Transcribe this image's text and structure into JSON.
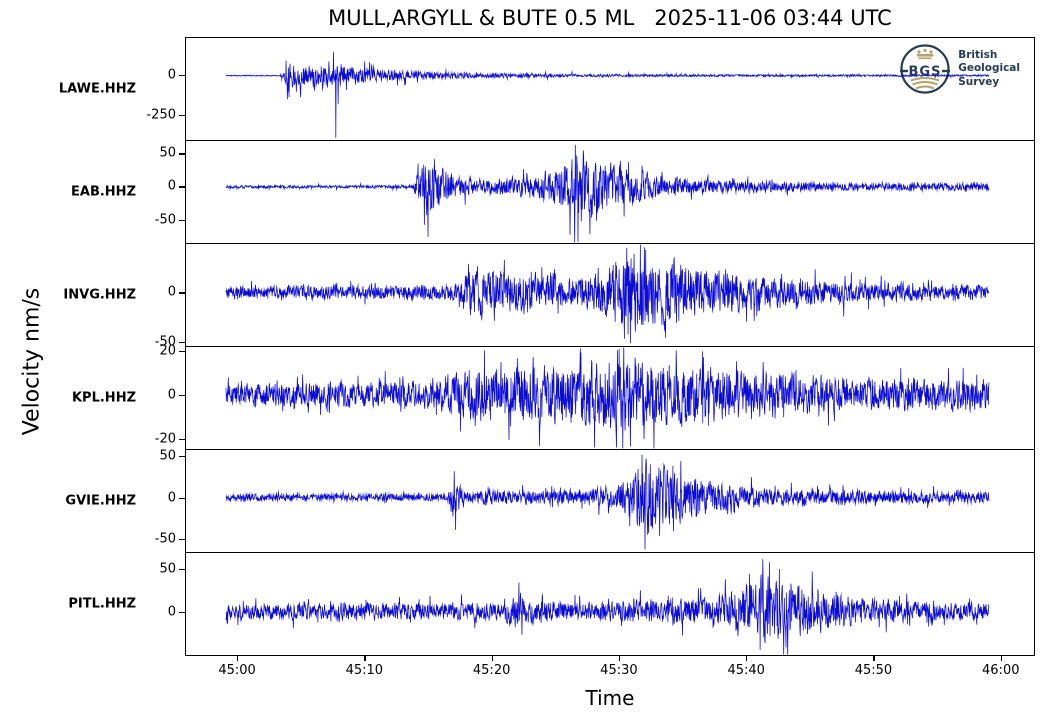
{
  "title": "MULL,ARGYLL & BUTE 0.5 ML   2025-11-06 03:44 UTC",
  "xlabel": "Time",
  "ylabel": "Velocity nm/s",
  "logo": {
    "abbr": "BGS",
    "lines": [
      "British",
      "Geological",
      "Survey"
    ],
    "navy": "#253c52",
    "gold": "#b2a26b"
  },
  "trace_color": "#0b0bd8",
  "chart_data": {
    "type": "line",
    "title": "MULL,ARGYLL & BUTE 0.5 ML   2025-11-06 03:44 UTC",
    "xlabel": "Time",
    "ylabel": "Velocity nm/s",
    "x_axis": {
      "tick_labels": [
        "45:00",
        "45:10",
        "45:20",
        "45:30",
        "45:40",
        "45:50",
        "46:00"
      ],
      "tick_values": [
        0,
        10,
        20,
        30,
        40,
        50,
        60
      ],
      "range": [
        -4.09,
        62.69
      ],
      "trace_range": [
        -0.94,
        59.15
      ],
      "units": "mm:ss after 03:00 UTC"
    },
    "series": [
      {
        "name": "LAWE.HHZ",
        "seed": 11,
        "ylim": [
          -406,
          237
        ],
        "y_ticks": [
          {
            "label": "0",
            "value": 0
          },
          {
            "label": "-250",
            "value": -250
          }
        ],
        "envelope": [
          [
            0,
            4
          ],
          [
            0.07,
            4
          ],
          [
            0.076,
            30
          ],
          [
            0.082,
            130
          ],
          [
            0.09,
            70
          ],
          [
            0.1,
            95
          ],
          [
            0.11,
            65
          ],
          [
            0.12,
            70
          ],
          [
            0.13,
            120
          ],
          [
            0.14,
            60
          ],
          [
            0.15,
            80
          ],
          [
            0.16,
            65
          ],
          [
            0.18,
            55
          ],
          [
            0.21,
            40
          ],
          [
            0.26,
            25
          ],
          [
            0.33,
            16
          ],
          [
            0.45,
            11
          ],
          [
            0.6,
            8
          ],
          [
            0.8,
            7
          ],
          [
            1,
            6
          ]
        ],
        "spikes": [
          [
            0.1437,
            -392
          ],
          [
            0.141,
            150
          ],
          [
            0.147,
            -180
          ],
          [
            0.0785,
            95
          ]
        ]
      },
      {
        "name": "EAB.HHZ",
        "seed": 22,
        "ylim": [
          -86,
          70
        ],
        "y_ticks": [
          {
            "label": "50",
            "value": 50
          },
          {
            "label": "0",
            "value": 0
          },
          {
            "label": "-50",
            "value": -50
          }
        ],
        "envelope": [
          [
            0,
            2.5
          ],
          [
            0.245,
            2.5
          ],
          [
            0.252,
            40
          ],
          [
            0.262,
            50
          ],
          [
            0.275,
            40
          ],
          [
            0.29,
            25
          ],
          [
            0.31,
            15
          ],
          [
            0.35,
            13
          ],
          [
            0.4,
            18
          ],
          [
            0.43,
            28
          ],
          [
            0.45,
            45
          ],
          [
            0.462,
            70
          ],
          [
            0.475,
            55
          ],
          [
            0.5,
            40
          ],
          [
            0.53,
            28
          ],
          [
            0.57,
            18
          ],
          [
            0.63,
            12
          ],
          [
            0.72,
            8
          ],
          [
            0.82,
            6
          ],
          [
            0.92,
            5
          ],
          [
            0.96,
            7
          ],
          [
            1,
            5
          ]
        ],
        "spikes": [
          [
            0.4615,
            -84
          ],
          [
            0.458,
            64
          ],
          [
            0.26,
            -58
          ]
        ]
      },
      {
        "name": "INVG.HHZ",
        "seed": 33,
        "ylim": [
          -55,
          50
        ],
        "y_ticks": [
          {
            "label": "0",
            "value": 0
          },
          {
            "label": "-50",
            "value": -50
          }
        ],
        "envelope": [
          [
            0,
            7
          ],
          [
            0.2,
            8
          ],
          [
            0.3,
            9
          ],
          [
            0.327,
            30
          ],
          [
            0.34,
            24
          ],
          [
            0.36,
            28
          ],
          [
            0.39,
            20
          ],
          [
            0.42,
            22
          ],
          [
            0.45,
            16
          ],
          [
            0.48,
            20
          ],
          [
            0.5,
            30
          ],
          [
            0.52,
            44
          ],
          [
            0.545,
            48
          ],
          [
            0.565,
            36
          ],
          [
            0.585,
            42
          ],
          [
            0.61,
            30
          ],
          [
            0.64,
            26
          ],
          [
            0.68,
            20
          ],
          [
            0.73,
            16
          ],
          [
            0.79,
            13
          ],
          [
            0.86,
            11
          ],
          [
            0.93,
            9
          ],
          [
            1,
            9
          ]
        ],
        "spikes": [
          [
            0.53,
            -52
          ],
          [
            0.525,
            46
          ],
          [
            0.55,
            44
          ]
        ]
      },
      {
        "name": "KPL.HHZ",
        "seed": 44,
        "ylim": [
          -25,
          22
        ],
        "y_ticks": [
          {
            "label": "20",
            "value": 20
          },
          {
            "label": "0",
            "value": 0
          },
          {
            "label": "-20",
            "value": -20
          }
        ],
        "envelope": [
          [
            0,
            6
          ],
          [
            0.27,
            7
          ],
          [
            0.3,
            12
          ],
          [
            0.34,
            15
          ],
          [
            0.38,
            13
          ],
          [
            0.42,
            15
          ],
          [
            0.46,
            16
          ],
          [
            0.5,
            18
          ],
          [
            0.52,
            20
          ],
          [
            0.55,
            16
          ],
          [
            0.59,
            17
          ],
          [
            0.63,
            14
          ],
          [
            0.68,
            12
          ],
          [
            0.75,
            10
          ],
          [
            0.85,
            8
          ],
          [
            1,
            8
          ]
        ],
        "spikes": [
          [
            0.52,
            -26
          ],
          [
            0.515,
            21
          ]
        ]
      },
      {
        "name": "GVIE.HHZ",
        "seed": 55,
        "ylim": [
          -67,
          58
        ],
        "y_ticks": [
          {
            "label": "50",
            "value": 50
          },
          {
            "label": "0",
            "value": 0
          },
          {
            "label": "-50",
            "value": -50
          }
        ],
        "envelope": [
          [
            0,
            4.5
          ],
          [
            0.29,
            4.5
          ],
          [
            0.297,
            30
          ],
          [
            0.305,
            18
          ],
          [
            0.315,
            9
          ],
          [
            0.36,
            10
          ],
          [
            0.42,
            9
          ],
          [
            0.47,
            11
          ],
          [
            0.51,
            16
          ],
          [
            0.53,
            30
          ],
          [
            0.55,
            55
          ],
          [
            0.57,
            42
          ],
          [
            0.6,
            32
          ],
          [
            0.63,
            22
          ],
          [
            0.67,
            15
          ],
          [
            0.72,
            12
          ],
          [
            0.8,
            10
          ],
          [
            0.88,
            9
          ],
          [
            1,
            7
          ]
        ],
        "spikes": [
          [
            0.549,
            -64
          ],
          [
            0.545,
            52
          ],
          [
            0.301,
            -40
          ],
          [
            0.299,
            32
          ]
        ]
      },
      {
        "name": "PITL.HHZ",
        "seed": 66,
        "ylim": [
          -52,
          69
        ],
        "y_ticks": [
          {
            "label": "50",
            "value": 50
          },
          {
            "label": "0",
            "value": 0
          }
        ],
        "envelope": [
          [
            0,
            10
          ],
          [
            0.28,
            11
          ],
          [
            0.36,
            11
          ],
          [
            0.385,
            24
          ],
          [
            0.4,
            16
          ],
          [
            0.44,
            13
          ],
          [
            0.5,
            13
          ],
          [
            0.55,
            15
          ],
          [
            0.6,
            16
          ],
          [
            0.64,
            20
          ],
          [
            0.68,
            30
          ],
          [
            0.71,
            45
          ],
          [
            0.74,
            38
          ],
          [
            0.78,
            25
          ],
          [
            0.83,
            18
          ],
          [
            0.89,
            14
          ],
          [
            0.95,
            12
          ],
          [
            1,
            11
          ]
        ],
        "spikes": [
          [
            0.712,
            58
          ],
          [
            0.7,
            -46
          ],
          [
            0.725,
            50
          ]
        ]
      }
    ]
  }
}
